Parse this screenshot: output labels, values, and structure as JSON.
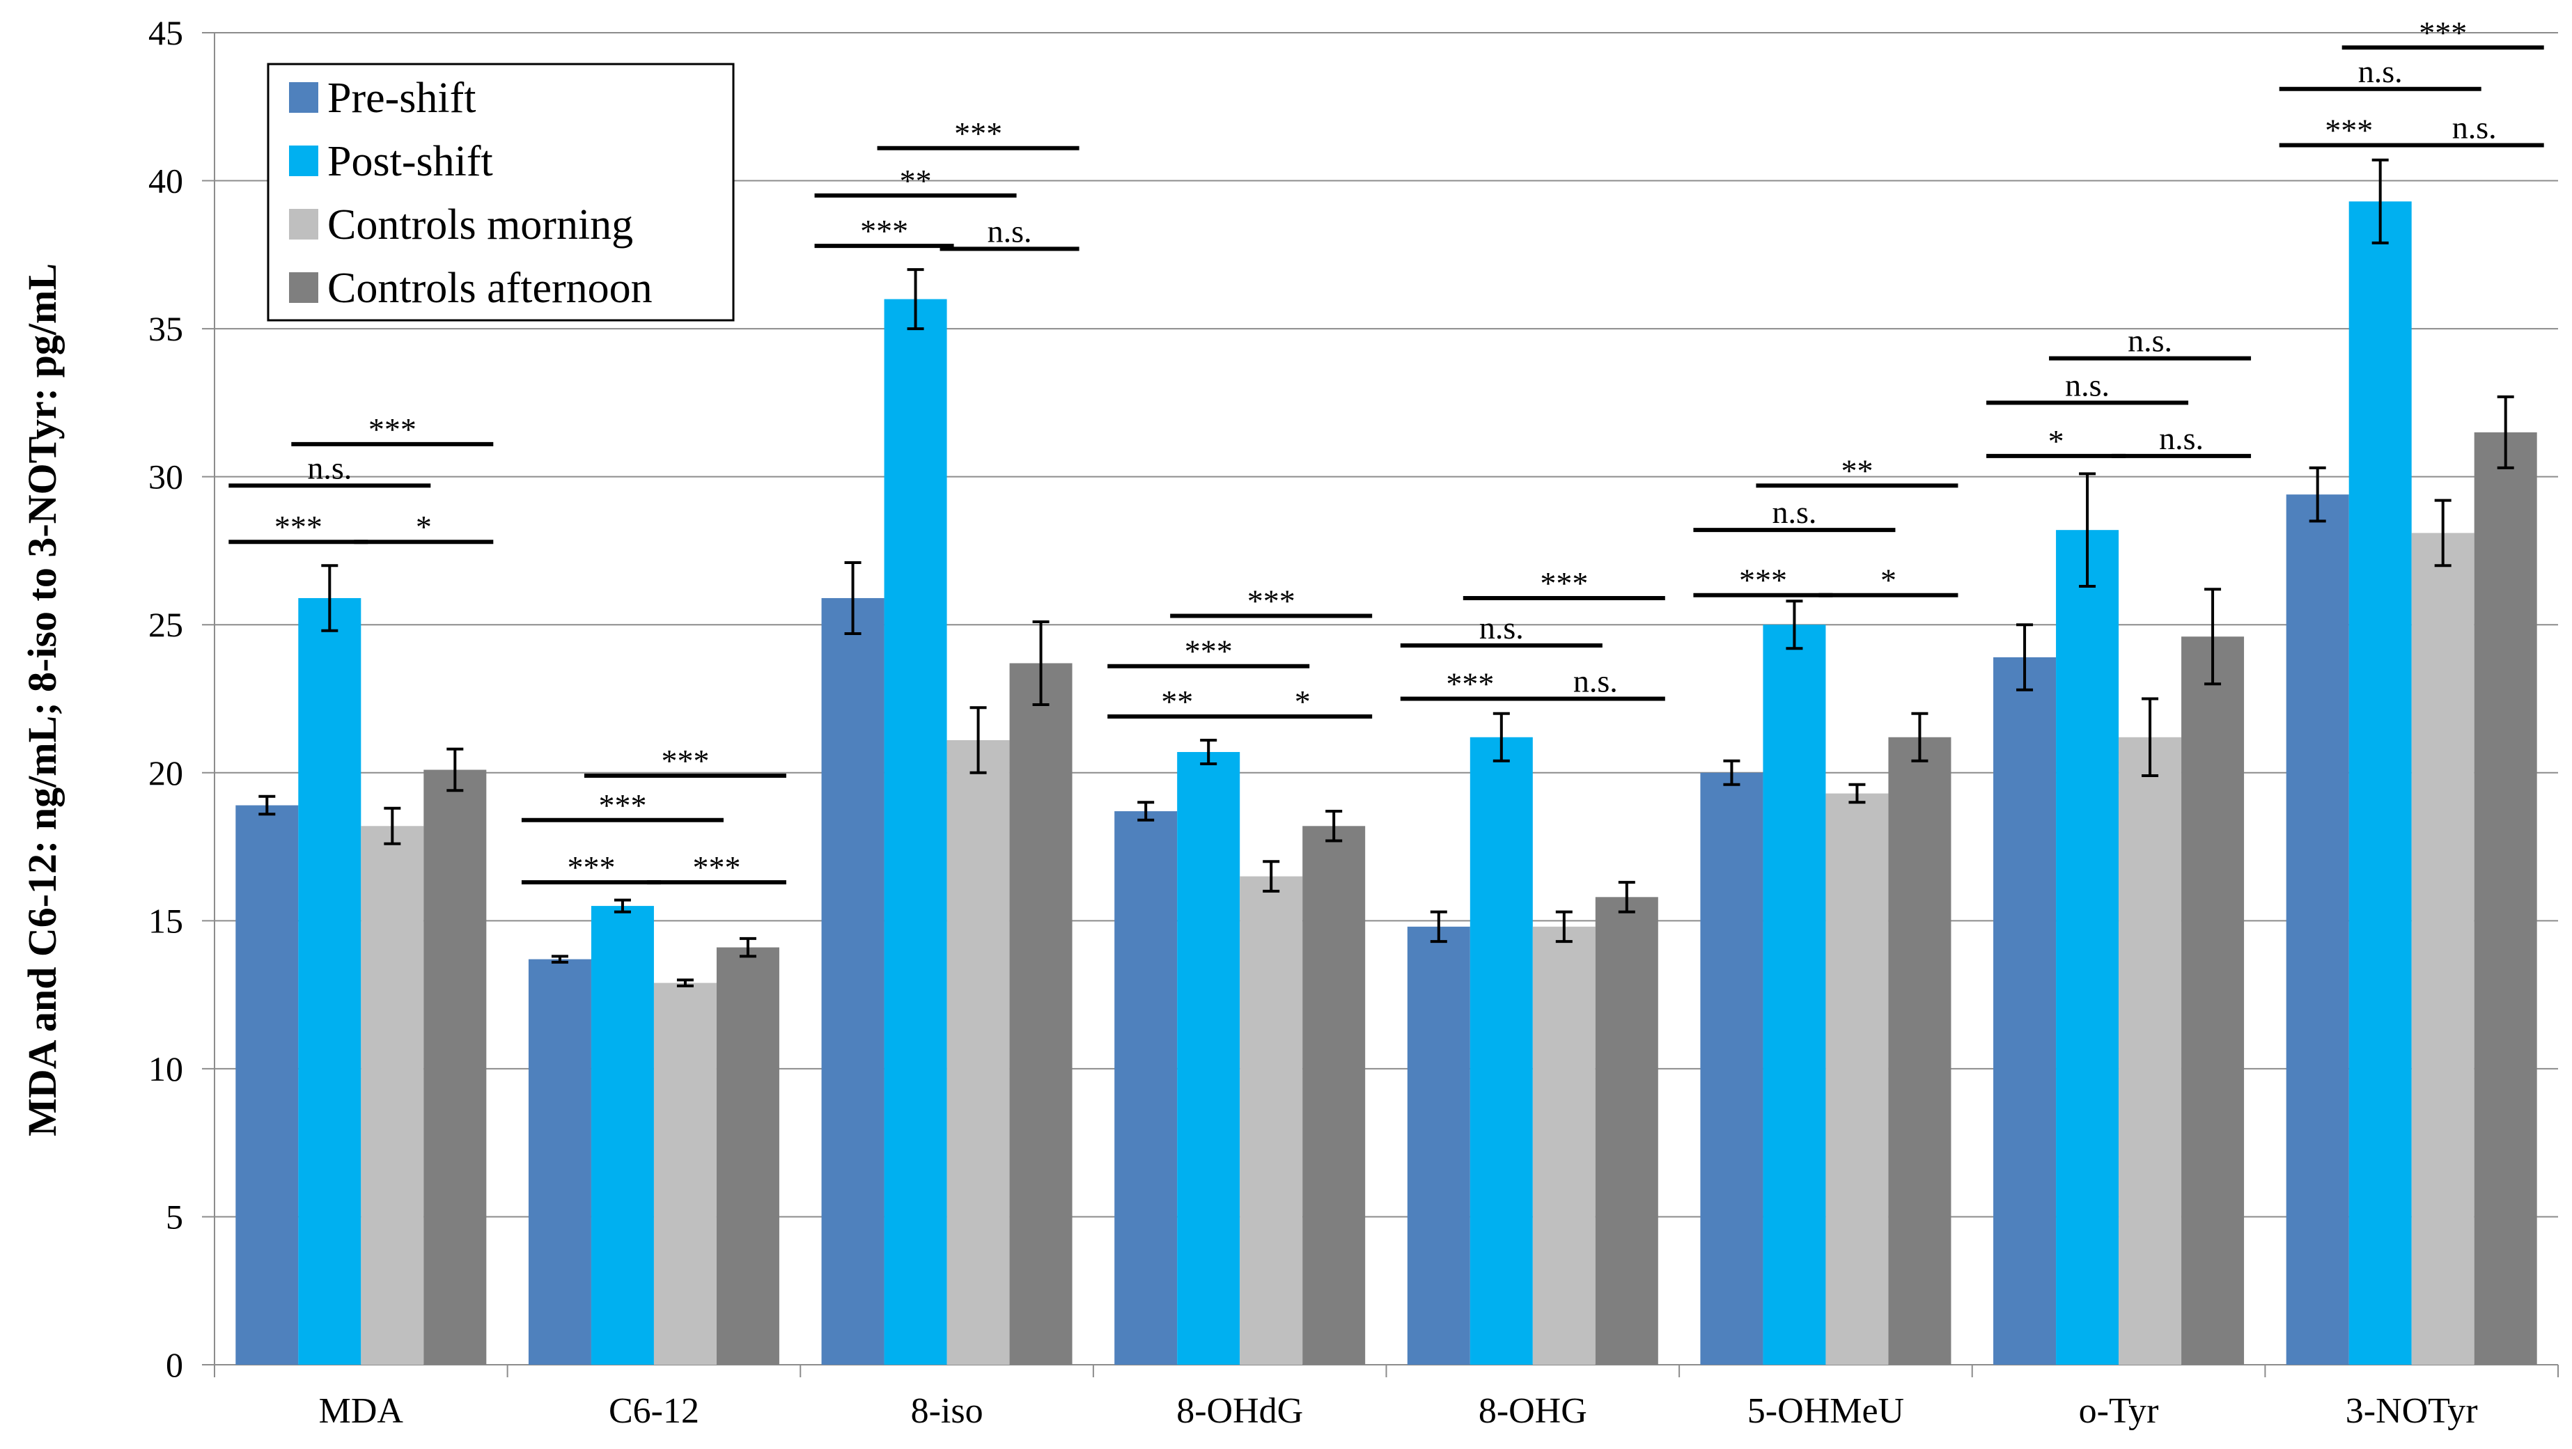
{
  "chart_data": {
    "type": "bar",
    "title": "",
    "xlabel": "",
    "ylabel": "MDA and C6-12: ng/mL; 8-iso to 3-NOTyr: pg/mL",
    "ylim": [
      0,
      45
    ],
    "yticks": [
      0,
      5,
      10,
      15,
      20,
      25,
      30,
      35,
      40,
      45
    ],
    "grid": true,
    "legend_position": "top-left",
    "categories": [
      "MDA",
      "C6-12",
      "8-iso",
      "8-OHdG",
      "8-OHG",
      "5-OHMeU",
      "o-Tyr",
      "3-NOTyr"
    ],
    "series": [
      {
        "name": "Pre-shift",
        "color": "#4f81bd",
        "values": [
          18.9,
          13.7,
          25.9,
          18.7,
          14.8,
          20.0,
          23.9,
          29.4
        ],
        "errors": [
          0.3,
          0.1,
          1.2,
          0.3,
          0.5,
          0.4,
          1.1,
          0.9
        ]
      },
      {
        "name": "Post-shift",
        "color": "#00b0f0",
        "values": [
          25.9,
          15.5,
          36.0,
          20.7,
          21.2,
          25.0,
          28.2,
          39.3
        ],
        "errors": [
          1.1,
          0.2,
          1.0,
          0.4,
          0.8,
          0.8,
          1.9,
          1.4
        ]
      },
      {
        "name": "Controls morning",
        "color": "#bfbfbf",
        "values": [
          18.2,
          12.9,
          21.1,
          16.5,
          14.8,
          19.3,
          21.2,
          28.1
        ],
        "errors": [
          0.6,
          0.1,
          1.1,
          0.5,
          0.5,
          0.3,
          1.3,
          1.1
        ]
      },
      {
        "name": "Controls afternoon",
        "color": "#7f7f7f",
        "values": [
          20.1,
          14.1,
          23.7,
          18.2,
          15.8,
          21.2,
          24.6,
          31.5
        ],
        "errors": [
          0.7,
          0.3,
          1.4,
          0.5,
          0.5,
          0.8,
          1.6,
          1.2
        ]
      }
    ],
    "significance": [
      {
        "category": 0,
        "annotations": [
          {
            "from": 0,
            "to": 1,
            "y": 27.8,
            "label": "***"
          },
          {
            "from": 2,
            "to": 3,
            "y": 27.8,
            "label": "*"
          },
          {
            "from": 0,
            "to": 2,
            "y": 29.7,
            "label": "n.s."
          },
          {
            "from": 1,
            "to": 3,
            "y": 31.1,
            "label": "***"
          }
        ]
      },
      {
        "category": 1,
        "annotations": [
          {
            "from": 0,
            "to": 1,
            "y": 16.3,
            "label": "***"
          },
          {
            "from": 2,
            "to": 3,
            "y": 16.3,
            "label": "***"
          },
          {
            "from": 0,
            "to": 2,
            "y": 18.4,
            "label": "***"
          },
          {
            "from": 1,
            "to": 3,
            "y": 19.9,
            "label": "***"
          }
        ]
      },
      {
        "category": 2,
        "annotations": [
          {
            "from": 0,
            "to": 1,
            "y": 37.8,
            "label": "***"
          },
          {
            "from": 2,
            "to": 3,
            "y": 37.7,
            "label": "n.s."
          },
          {
            "from": 0,
            "to": 2,
            "y": 39.5,
            "label": "**"
          },
          {
            "from": 1,
            "to": 3,
            "y": 41.1,
            "label": "***"
          }
        ]
      },
      {
        "category": 3,
        "annotations": [
          {
            "from": 0,
            "to": 1,
            "y": 21.9,
            "label": "**"
          },
          {
            "from": 2,
            "to": 3,
            "y": 21.9,
            "label": "*"
          },
          {
            "from": 0,
            "to": 2,
            "y": 23.6,
            "label": "***"
          },
          {
            "from": 1,
            "to": 3,
            "y": 25.3,
            "label": "***"
          }
        ]
      },
      {
        "category": 4,
        "annotations": [
          {
            "from": 0,
            "to": 1,
            "y": 22.5,
            "label": "***"
          },
          {
            "from": 2,
            "to": 3,
            "y": 22.5,
            "label": "n.s."
          },
          {
            "from": 0,
            "to": 2,
            "y": 24.3,
            "label": "n.s."
          },
          {
            "from": 1,
            "to": 3,
            "y": 25.9,
            "label": "***"
          }
        ]
      },
      {
        "category": 5,
        "annotations": [
          {
            "from": 0,
            "to": 1,
            "y": 26.0,
            "label": "***"
          },
          {
            "from": 2,
            "to": 3,
            "y": 26.0,
            "label": "*"
          },
          {
            "from": 0,
            "to": 2,
            "y": 28.2,
            "label": "n.s."
          },
          {
            "from": 1,
            "to": 3,
            "y": 29.7,
            "label": "**"
          }
        ]
      },
      {
        "category": 6,
        "annotations": [
          {
            "from": 0,
            "to": 1,
            "y": 30.7,
            "label": "*"
          },
          {
            "from": 2,
            "to": 3,
            "y": 30.7,
            "label": "n.s."
          },
          {
            "from": 0,
            "to": 2,
            "y": 32.5,
            "label": "n.s."
          },
          {
            "from": 1,
            "to": 3,
            "y": 34.0,
            "label": "n.s."
          }
        ]
      },
      {
        "category": 7,
        "annotations": [
          {
            "from": 0,
            "to": 1,
            "y": 41.2,
            "label": "***"
          },
          {
            "from": 2,
            "to": 3,
            "y": 41.2,
            "label": "n.s."
          },
          {
            "from": 0,
            "to": 2,
            "y": 43.1,
            "label": "n.s."
          },
          {
            "from": 1,
            "to": 3,
            "y": 44.5,
            "label": "***"
          }
        ]
      }
    ]
  }
}
